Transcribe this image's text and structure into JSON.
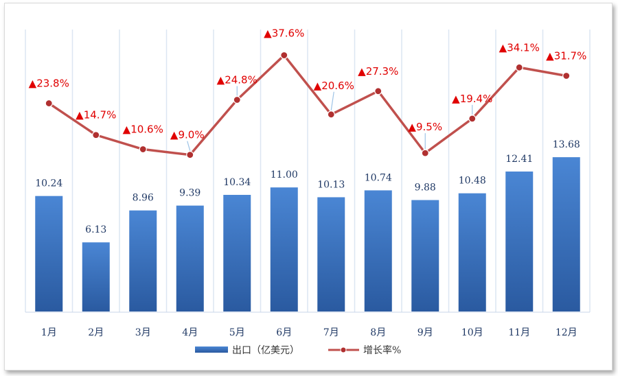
{
  "chart_data": {
    "type": "bar",
    "categories": [
      "1月",
      "2月",
      "3月",
      "4月",
      "5月",
      "6月",
      "7月",
      "8月",
      "9月",
      "10月",
      "11月",
      "12月"
    ],
    "series": [
      {
        "name": "出口（亿美元）",
        "type": "bar",
        "values": [
          10.24,
          6.13,
          8.96,
          9.39,
          10.34,
          11.0,
          10.13,
          10.74,
          9.88,
          10.48,
          12.41,
          13.68
        ],
        "labels": [
          "10.24",
          "6.13",
          "8.96",
          "9.39",
          "10.34",
          "11.00",
          "10.13",
          "10.74",
          "9.88",
          "10.48",
          "12.41",
          "13.68"
        ],
        "color": "#3a73c4"
      },
      {
        "name": "增长率%",
        "type": "line",
        "values": [
          23.8,
          14.7,
          10.6,
          9.0,
          24.8,
          37.6,
          20.6,
          27.3,
          9.5,
          19.4,
          34.1,
          31.7
        ],
        "labels": [
          "▲23.8%",
          "▲14.7%",
          "▲10.6%",
          "▲9.0%",
          "▲24.8%",
          "▲37.6%",
          "▲20.6%",
          "▲27.3%",
          "▲9.5%",
          "▲19.4%",
          "▲34.1%",
          "▲31.7%"
        ],
        "color": "#c0504d",
        "label_color": "#e00000"
      }
    ],
    "bar_axis_range": [
      0,
      25
    ],
    "line_axis_range": [
      -36,
      45
    ],
    "grid": "vertical",
    "legend_position": "bottom",
    "title": "",
    "xlabel": "",
    "ylabel": ""
  }
}
